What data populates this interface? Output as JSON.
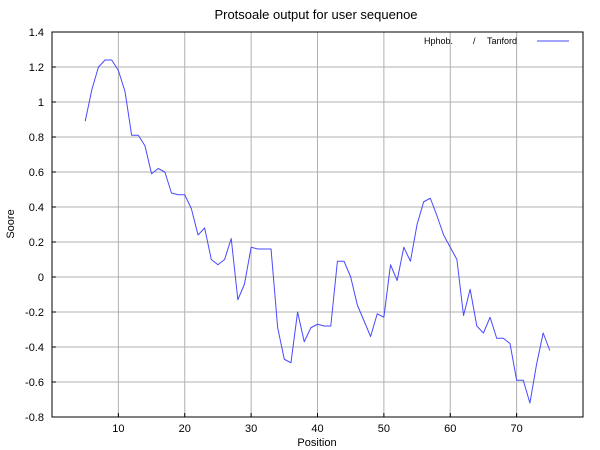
{
  "chart_data": {
    "type": "line",
    "title": "Protsoale output for user sequenoe",
    "xlabel": "Position",
    "ylabel": "Soore",
    "xlim": [
      0,
      80
    ],
    "ylim": [
      -0.8,
      1.4
    ],
    "xticks": [
      "10",
      "20",
      "30",
      "40",
      "50",
      "60",
      "70"
    ],
    "yticks": [
      "1.4",
      "1.2",
      "1",
      "0.8",
      "0.6",
      "0.4",
      "0.2",
      "0",
      "-0.2",
      "-0.4",
      "-0.6",
      "-0.8"
    ],
    "grid": true,
    "legend_position": "top-right",
    "legend": {
      "part1": "Hphob.",
      "part2": "/",
      "part3": "Tanford"
    },
    "series": [
      {
        "name": "Hphob. / Tanford",
        "color": "#4a4aff",
        "x": [
          5,
          6,
          7,
          8,
          9,
          10,
          11,
          12,
          13,
          14,
          15,
          16,
          17,
          18,
          19,
          20,
          21,
          22,
          23,
          24,
          25,
          26,
          27,
          28,
          29,
          30,
          31,
          32,
          33,
          34,
          35,
          36,
          37,
          38,
          39,
          40,
          41,
          42,
          43,
          44,
          45,
          46,
          47,
          48,
          49,
          50,
          51,
          52,
          53,
          54,
          55,
          56,
          57,
          58,
          59,
          60,
          61,
          62,
          63,
          64,
          65,
          66,
          67,
          68,
          69,
          70,
          71,
          72,
          73,
          74,
          75
        ],
        "y": [
          0.89,
          1.07,
          1.2,
          1.24,
          1.24,
          1.18,
          1.06,
          0.81,
          0.81,
          0.75,
          0.59,
          0.62,
          0.6,
          0.48,
          0.47,
          0.47,
          0.39,
          0.24,
          0.28,
          0.1,
          0.07,
          0.1,
          0.22,
          -0.13,
          -0.04,
          0.17,
          0.16,
          0.16,
          0.16,
          -0.29,
          -0.47,
          -0.49,
          -0.2,
          -0.37,
          -0.29,
          -0.27,
          -0.28,
          -0.28,
          0.09,
          0.09,
          0.0,
          -0.16,
          -0.25,
          -0.34,
          -0.21,
          -0.23,
          0.07,
          -0.02,
          0.17,
          0.09,
          0.3,
          0.43,
          0.45,
          0.35,
          0.24,
          0.17,
          0.1,
          -0.22,
          -0.07,
          -0.28,
          -0.32,
          -0.23,
          -0.35,
          -0.35,
          -0.38,
          -0.59,
          -0.59,
          -0.72,
          -0.5,
          -0.32,
          -0.42
        ]
      }
    ]
  }
}
